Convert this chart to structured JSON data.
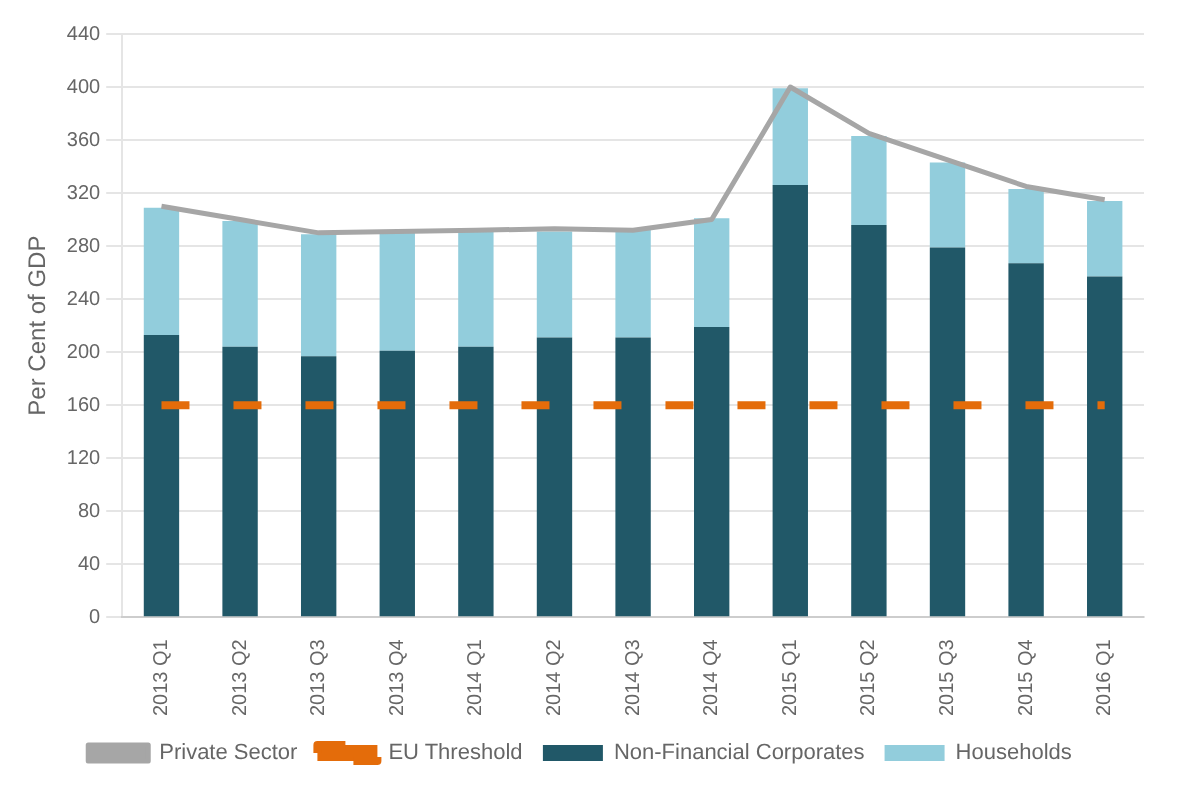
{
  "chart_data": {
    "type": "bar",
    "ylabel": "Per Cent of GDP",
    "categories": [
      "2013 Q1",
      "2013 Q2",
      "2013 Q3",
      "2013 Q4",
      "2014 Q1",
      "2014 Q2",
      "2014 Q3",
      "2014 Q4",
      "2015 Q1",
      "2015 Q2",
      "2015 Q3",
      "2015 Q4",
      "2016 Q1"
    ],
    "stacked": true,
    "series": [
      {
        "name": "Non-Financial Corporates",
        "color": "#215868",
        "values": [
          213,
          204,
          197,
          201,
          204,
          211,
          211,
          219,
          326,
          296,
          279,
          267,
          257
        ]
      },
      {
        "name": "Households",
        "color": "#92cddc",
        "values": [
          96,
          95,
          92,
          90,
          87,
          80,
          82,
          82,
          73,
          67,
          64,
          56,
          57
        ]
      },
      {
        "name": "Private Sector",
        "type": "line",
        "color": "#a6a6a6",
        "line_style": "solid",
        "values": [
          310,
          300,
          290,
          291,
          292,
          293,
          292,
          300,
          400,
          365,
          345,
          325,
          315
        ]
      },
      {
        "name": "EU Threshold",
        "type": "line",
        "color": "#e46c0a",
        "line_style": "dashed",
        "values": [
          160,
          160,
          160,
          160,
          160,
          160,
          160,
          160,
          160,
          160,
          160,
          160,
          160
        ]
      }
    ],
    "ylim": [
      0,
      440
    ],
    "yticks": [
      0,
      40,
      80,
      120,
      160,
      200,
      240,
      280,
      320,
      360,
      400,
      440
    ],
    "grid": "y",
    "legend": "bottom",
    "marker": "none"
  }
}
